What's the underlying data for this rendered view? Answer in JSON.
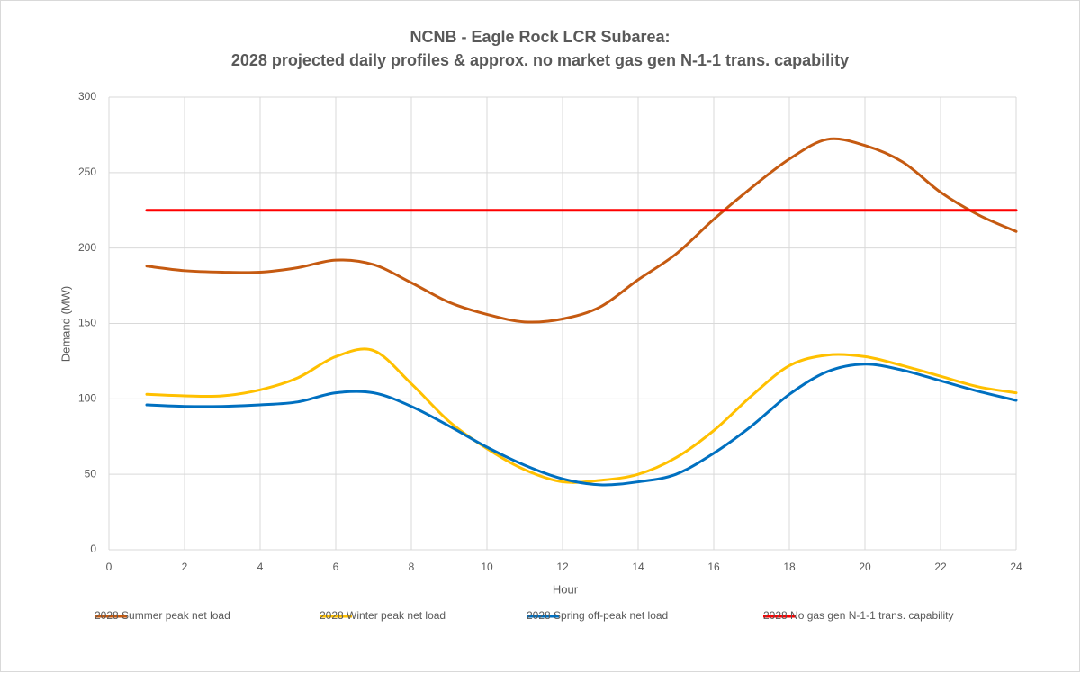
{
  "chart_data": {
    "type": "line",
    "title": [
      "NCNB - Eagle Rock LCR Subarea:",
      "2028 projected daily profiles & approx. no market gas gen N-1-1 trans. capability"
    ],
    "xlabel": "Hour",
    "ylabel": "Demand (MW)",
    "x": [
      1,
      2,
      3,
      4,
      5,
      6,
      7,
      8,
      9,
      10,
      11,
      12,
      13,
      14,
      15,
      16,
      17,
      18,
      19,
      20,
      21,
      22,
      23,
      24
    ],
    "series": [
      {
        "name": "2028 Summer peak net load",
        "color": "#c55a11",
        "values": [
          188,
          185,
          184,
          184,
          187,
          192,
          189,
          177,
          164,
          156,
          151,
          153,
          161,
          179,
          196,
          219,
          240,
          259,
          272,
          268,
          257,
          237,
          222,
          211
        ]
      },
      {
        "name": "2028 Winter peak net load",
        "color": "#ffc000",
        "values": [
          103,
          102,
          102,
          106,
          114,
          128,
          132,
          110,
          85,
          67,
          53,
          45,
          46,
          50,
          61,
          79,
          102,
          122,
          129,
          128,
          122,
          115,
          108,
          104
        ]
      },
      {
        "name": "2028 Spring off-peak net load",
        "color": "#0070c0",
        "values": [
          96,
          95,
          95,
          96,
          98,
          104,
          104,
          95,
          82,
          68,
          56,
          47,
          43,
          45,
          50,
          64,
          82,
          103,
          118,
          123,
          119,
          112,
          105,
          99
        ]
      },
      {
        "name": "2028 No gas gen N-1-1 trans. capability",
        "color": "#ff0000",
        "values": [
          225,
          225,
          225,
          225,
          225,
          225,
          225,
          225,
          225,
          225,
          225,
          225,
          225,
          225,
          225,
          225,
          225,
          225,
          225,
          225,
          225,
          225,
          225,
          225
        ]
      }
    ],
    "xlim": [
      0,
      24
    ],
    "xticks": [
      0,
      2,
      4,
      6,
      8,
      10,
      12,
      14,
      16,
      18,
      20,
      22,
      24
    ],
    "ylim": [
      0,
      300
    ],
    "yticks": [
      0,
      50,
      100,
      150,
      200,
      250,
      300
    ],
    "grid": true,
    "legend": "bottom",
    "smooth": true
  }
}
